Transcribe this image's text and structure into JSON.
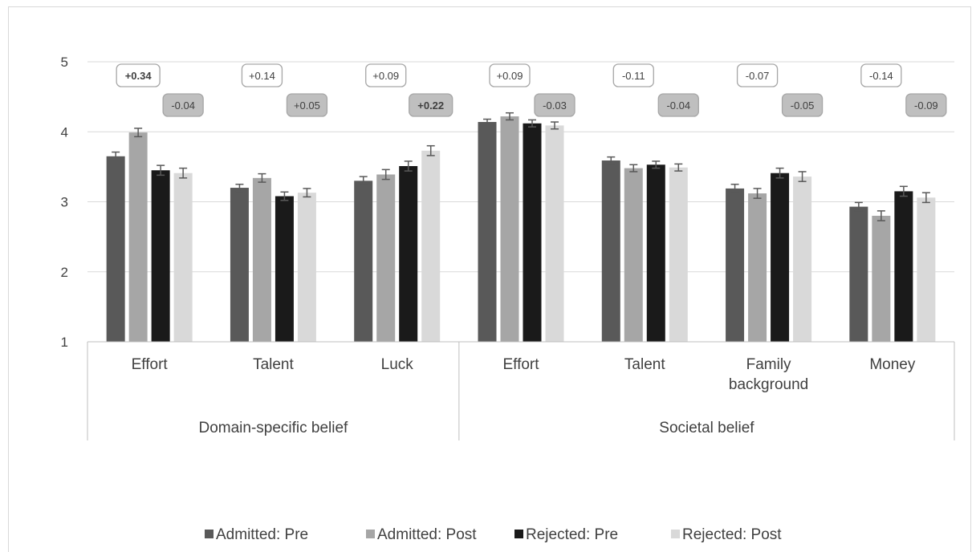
{
  "chart_data": {
    "type": "bar",
    "yaxis": {
      "ticks": [
        "1",
        "2",
        "3",
        "4",
        "5"
      ],
      "ylim": [
        1,
        5
      ],
      "gridlines": true
    },
    "categories": [
      "Effort",
      "Talent",
      "Luck",
      "Effort",
      "Talent",
      "Family background",
      "Money"
    ],
    "category_lines": [
      [
        "Effort"
      ],
      [
        "Talent"
      ],
      [
        "Luck"
      ],
      [
        "Effort"
      ],
      [
        "Talent"
      ],
      [
        "Family",
        "background"
      ],
      [
        "Money"
      ]
    ],
    "groups": [
      {
        "label": "Domain-specific belief",
        "count": 3
      },
      {
        "label": "Societal belief",
        "count": 4
      }
    ],
    "series": [
      {
        "name": "Admitted: Pre",
        "color": "#595959",
        "values": [
          3.65,
          3.2,
          3.3,
          4.14,
          3.59,
          3.19,
          2.93
        ],
        "errors": [
          0.06,
          0.05,
          0.06,
          0.04,
          0.05,
          0.06,
          0.06
        ]
      },
      {
        "name": "Admitted: Post",
        "color": "#a6a6a6",
        "values": [
          3.99,
          3.34,
          3.39,
          4.22,
          3.48,
          3.12,
          2.8
        ],
        "errors": [
          0.06,
          0.06,
          0.07,
          0.05,
          0.05,
          0.07,
          0.07
        ]
      },
      {
        "name": "Rejected: Pre",
        "color": "#1a1a1a",
        "values": [
          3.45,
          3.08,
          3.51,
          4.12,
          3.53,
          3.41,
          3.15
        ],
        "errors": [
          0.07,
          0.06,
          0.07,
          0.05,
          0.05,
          0.07,
          0.07
        ]
      },
      {
        "name": "Rejected: Post",
        "color": "#d9d9d9",
        "values": [
          3.41,
          3.13,
          3.73,
          4.09,
          3.49,
          3.36,
          3.06
        ],
        "errors": [
          0.07,
          0.06,
          0.07,
          0.05,
          0.05,
          0.07,
          0.07
        ]
      }
    ],
    "annotations": {
      "admitted_change": [
        {
          "text": "+0.34",
          "bold": true
        },
        {
          "text": "+0.14",
          "bold": false
        },
        {
          "text": "+0.09",
          "bold": false
        },
        {
          "text": "+0.09",
          "bold": false
        },
        {
          "text": "-0.11",
          "bold": false
        },
        {
          "text": "-0.07",
          "bold": false
        },
        {
          "text": "-0.14",
          "bold": false
        }
      ],
      "rejected_change": [
        {
          "text": "-0.04",
          "bold": false
        },
        {
          "text": "+0.05",
          "bold": false
        },
        {
          "text": "+0.22",
          "bold": true
        },
        {
          "text": "-0.03",
          "bold": false
        },
        {
          "text": "-0.04",
          "bold": false
        },
        {
          "text": "-0.05",
          "bold": false
        },
        {
          "text": "-0.09",
          "bold": false
        }
      ],
      "admitted_style": {
        "fill": "#ffffff",
        "stroke": "#a6a6a6"
      },
      "rejected_style": {
        "fill": "#bfbfbf",
        "stroke": "#a6a6a6"
      }
    },
    "legend": {
      "position": "bottom"
    },
    "title": "",
    "xlabel": "",
    "ylabel": ""
  }
}
